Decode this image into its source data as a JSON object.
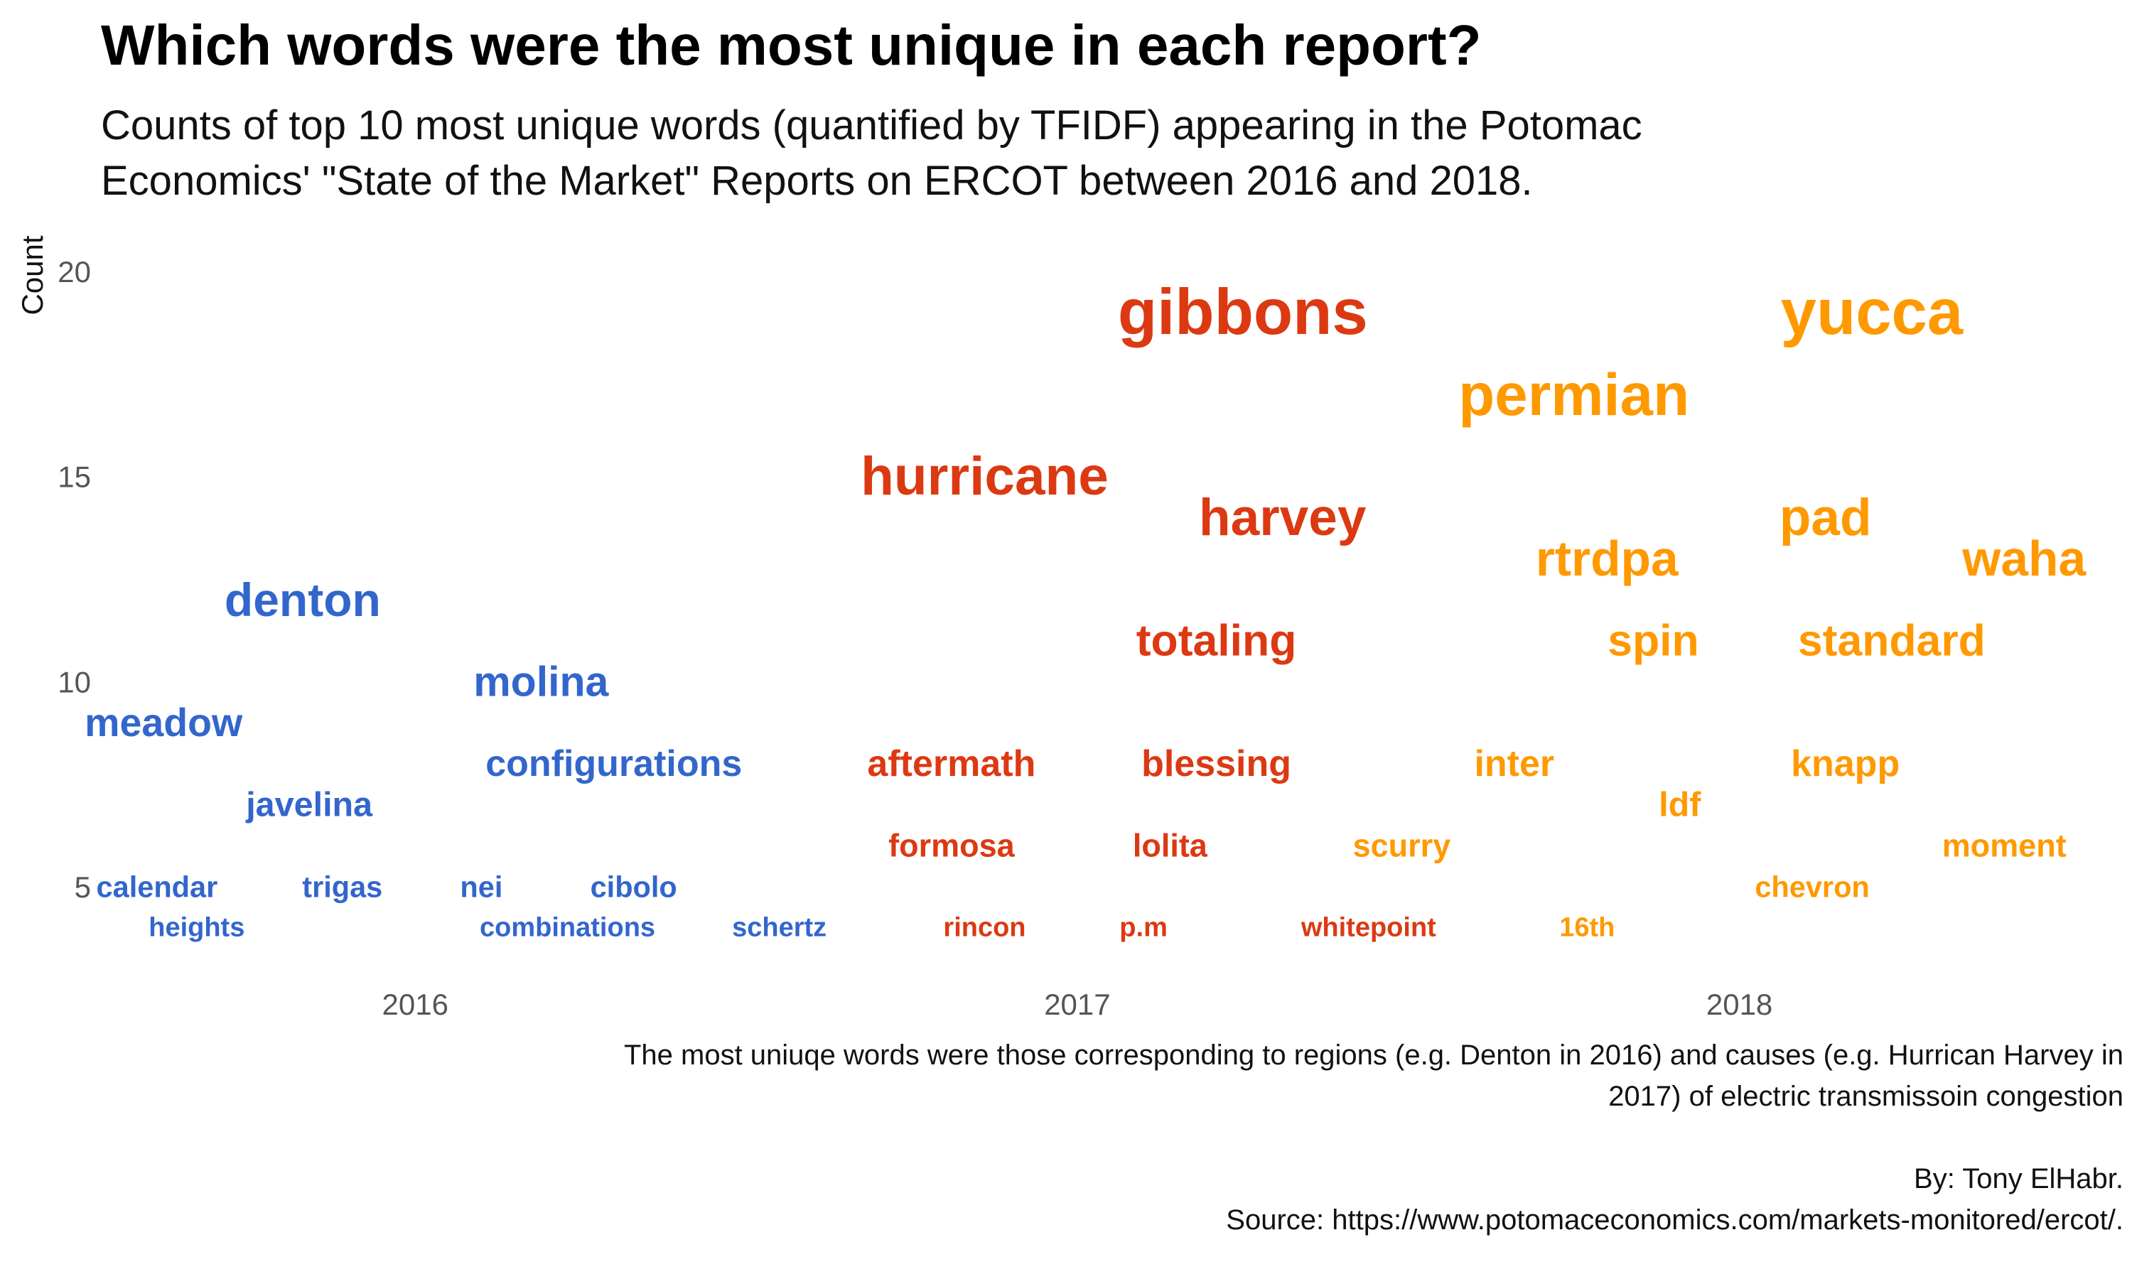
{
  "title": "Which words were the most unique in each report?",
  "subtitle": [
    "Counts of top 10 most unique words (quantified by TFIDF) appearing in the Potomac",
    "Economics' \"State of the Market\" Reports on ERCOT between 2016 and 2018."
  ],
  "caption": [
    "The most uniuqe words were those corresponding to regions (e.g. Denton in 2016) and causes (e.g. Hurrican Harvey in",
    "2017) of electric transmissoin congestion",
    "By: Tony ElHabr.",
    "Source: https://www.potomaceconomics.com/markets-monitored/ercot/."
  ],
  "chart_data": {
    "type": "scatter",
    "title": "Which words were the most unique in each report?",
    "xlabel": "",
    "ylabel": "Count",
    "x_ticks": [
      "2016",
      "2017",
      "2018"
    ],
    "y_ticks": [
      5,
      10,
      15,
      20
    ],
    "ylim": [
      2.8,
      20.9
    ],
    "grid": false,
    "legend": "none",
    "colors": {
      "2016": "#3366CC",
      "2017": "#DC3912",
      "2018": "#FF9900"
    },
    "series": [
      {
        "year": "2016",
        "points": [
          {
            "word": "denton",
            "x": 2015.83,
            "y": 12
          },
          {
            "word": "molina",
            "x": 2016.19,
            "y": 10
          },
          {
            "word": "meadow",
            "x": 2015.62,
            "y": 9
          },
          {
            "word": "configurations",
            "x": 2016.3,
            "y": 8
          },
          {
            "word": "javelina",
            "x": 2015.84,
            "y": 7
          },
          {
            "word": "calendar",
            "x": 2015.61,
            "y": 5
          },
          {
            "word": "nei",
            "x": 2016.1,
            "y": 5
          },
          {
            "word": "cibolo",
            "x": 2016.33,
            "y": 5
          },
          {
            "word": "trigas",
            "x": 2015.89,
            "y": 5
          },
          {
            "word": "heights",
            "x": 2015.67,
            "y": 4
          },
          {
            "word": "combinations",
            "x": 2016.23,
            "y": 4
          },
          {
            "word": "schertz",
            "x": 2016.55,
            "y": 4
          }
        ]
      },
      {
        "year": "2017",
        "points": [
          {
            "word": "gibbons",
            "x": 2017.25,
            "y": 19
          },
          {
            "word": "hurricane",
            "x": 2016.86,
            "y": 15
          },
          {
            "word": "harvey",
            "x": 2017.31,
            "y": 14
          },
          {
            "word": "totaling",
            "x": 2017.21,
            "y": 11
          },
          {
            "word": "aftermath",
            "x": 2016.81,
            "y": 8
          },
          {
            "word": "blessing",
            "x": 2017.21,
            "y": 8
          },
          {
            "word": "formosa",
            "x": 2016.81,
            "y": 6
          },
          {
            "word": "lolita",
            "x": 2017.14,
            "y": 6
          },
          {
            "word": "rincon",
            "x": 2016.86,
            "y": 4
          },
          {
            "word": "p.m",
            "x": 2017.1,
            "y": 4
          },
          {
            "word": "whitepoint",
            "x": 2017.44,
            "y": 4
          }
        ]
      },
      {
        "year": "2018",
        "points": [
          {
            "word": "yucca",
            "x": 2018.2,
            "y": 19
          },
          {
            "word": "permian",
            "x": 2017.75,
            "y": 17
          },
          {
            "word": "pad",
            "x": 2018.13,
            "y": 14
          },
          {
            "word": "rtrdpa",
            "x": 2017.8,
            "y": 13
          },
          {
            "word": "waha",
            "x": 2018.43,
            "y": 13
          },
          {
            "word": "spin",
            "x": 2017.87,
            "y": 11
          },
          {
            "word": "standard",
            "x": 2018.23,
            "y": 11
          },
          {
            "word": "inter",
            "x": 2017.66,
            "y": 8
          },
          {
            "word": "knapp",
            "x": 2018.16,
            "y": 8
          },
          {
            "word": "ldf",
            "x": 2017.91,
            "y": 7
          },
          {
            "word": "moment",
            "x": 2018.4,
            "y": 6
          },
          {
            "word": "scurry",
            "x": 2017.49,
            "y": 6
          },
          {
            "word": "chevron",
            "x": 2018.11,
            "y": 5
          },
          {
            "word": "16th",
            "x": 2017.77,
            "y": 4
          }
        ]
      }
    ]
  }
}
